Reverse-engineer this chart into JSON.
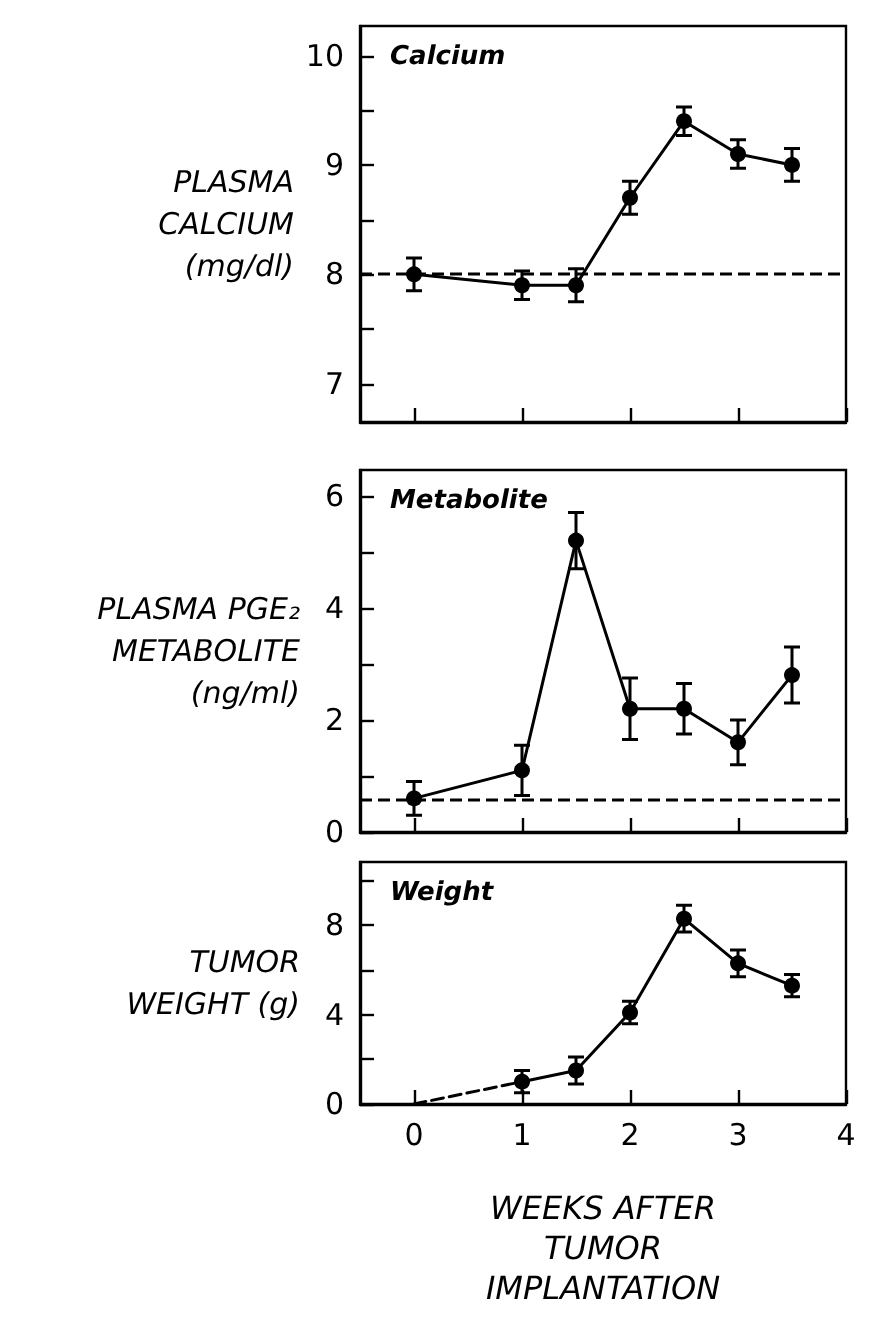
{
  "chart_data": [
    {
      "type": "line",
      "title": "Calcium",
      "ylabel": "PLASMA CALCIUM (mg/dl)",
      "x": [
        0,
        1,
        1.5,
        2,
        2.5,
        3,
        3.5
      ],
      "marker": "circle",
      "line_style": "solid",
      "grid": false,
      "tick_labels": "y",
      "series": [
        {
          "color": "#000000",
          "values": [
            8.0,
            7.9,
            7.9,
            8.7,
            9.4,
            9.1,
            9.0
          ],
          "errors": [
            0.15,
            0.13,
            0.15,
            0.15,
            0.13,
            0.13,
            0.15
          ]
        }
      ],
      "xlim": [
        -0.5,
        4
      ],
      "xticks": [
        0,
        1,
        2,
        3,
        4
      ],
      "ylim": [
        6.65,
        10.27
      ],
      "yticks": [
        7,
        {
          "value": 7.5,
          "label": null
        },
        8,
        {
          "value": 8.5,
          "label": null
        },
        9,
        {
          "value": 9.5,
          "label": null
        },
        10
      ],
      "ref_lines": [
        {
          "axis": "y",
          "value": 8,
          "line_style": "dashed",
          "color": "#000000"
        }
      ]
    },
    {
      "type": "line",
      "title": "Metabolite",
      "ylabel": "PLASMA PGE₂ METABOLITE (ng/ml)",
      "x": [
        0,
        1,
        1.5,
        2,
        2.5,
        3,
        3.5
      ],
      "marker": "circle",
      "line_style": "solid",
      "grid": false,
      "tick_labels": "y",
      "series": [
        {
          "color": "#000000",
          "values": [
            0.6,
            1.1,
            5.2,
            2.2,
            2.2,
            1.6,
            2.8
          ],
          "errors": [
            0.3,
            0.45,
            0.5,
            0.55,
            0.45,
            0.4,
            0.5
          ]
        }
      ],
      "xlim": [
        -0.5,
        4
      ],
      "xticks": [
        0,
        1,
        2,
        3,
        4
      ],
      "ylim": [
        0,
        6.46
      ],
      "yticks": [
        0,
        {
          "value": 1,
          "label": null
        },
        2,
        {
          "value": 3,
          "label": null
        },
        4,
        {
          "value": 5,
          "label": null
        },
        6
      ],
      "ref_lines": [
        {
          "axis": "y",
          "value": 0.57,
          "line_style": "dashed",
          "color": "#000000"
        }
      ]
    },
    {
      "type": "line",
      "title": "Weight",
      "ylabel": "TUMOR WEIGHT (g)",
      "xlabel": "WEEKS AFTER TUMOR IMPLANTATION",
      "line_style": "solid",
      "grid": false,
      "series": [
        {
          "color": "#000000",
          "marker": "circle",
          "x": [
            1,
            1.5,
            2,
            2.5,
            3,
            3.5
          ],
          "values": [
            1.0,
            1.5,
            4.1,
            8.3,
            6.3,
            5.3
          ],
          "errors": [
            0.5,
            0.6,
            0.5,
            0.6,
            0.6,
            0.5
          ]
        },
        {
          "color": "#000000",
          "x": [
            0,
            1
          ],
          "values": [
            0,
            1.0
          ],
          "line_style": "dashed"
        }
      ],
      "xlim": [
        -0.5,
        4
      ],
      "xticks": [
        0,
        1,
        2,
        3,
        4
      ],
      "ylim": [
        0,
        10.84
      ],
      "yticks": [
        0,
        {
          "value": 2,
          "label": null
        },
        4,
        {
          "value": 6,
          "label": null
        },
        8,
        {
          "value": 10,
          "label": null
        }
      ]
    }
  ]
}
